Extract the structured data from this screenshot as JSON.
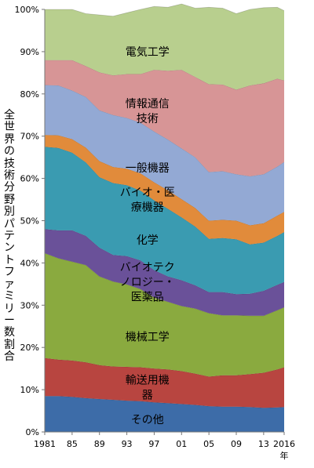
{
  "chart_data": {
    "type": "area",
    "stacked": true,
    "normalized": true,
    "ylabel": "全世界の技術分野別パテントファミリー数割合",
    "xlabel_suffix": "年",
    "x": [
      1981,
      1983,
      1985,
      1987,
      1989,
      1991,
      1993,
      1995,
      1997,
      1999,
      2001,
      2003,
      2005,
      2007,
      2009,
      2011,
      2013,
      2015,
      2016
    ],
    "xticks": [
      1981,
      1985,
      1989,
      1993,
      1997,
      2001,
      2005,
      2009,
      2013,
      2016
    ],
    "xtick_labels": [
      "1981",
      "85",
      "89",
      "93",
      "97",
      "01",
      "05",
      "09",
      "13",
      "2016"
    ],
    "yticks": [
      0,
      10,
      20,
      30,
      40,
      50,
      60,
      70,
      80,
      90,
      100
    ],
    "ytick_labels": [
      "0%",
      "10%",
      "20%",
      "30%",
      "40%",
      "50%",
      "60%",
      "70%",
      "80%",
      "90%",
      "100%"
    ],
    "ylim": [
      0,
      100
    ],
    "series": [
      {
        "color": "#3d6ca8",
        "label_lines": [
          "その他"
        ],
        "label_x": 1996,
        "label_y": 3,
        "values": [
          8.5,
          8.5,
          8.3,
          8.0,
          7.8,
          7.6,
          7.4,
          7.3,
          7.0,
          6.8,
          6.6,
          6.4,
          6.1,
          6.0,
          6.0,
          5.9,
          5.7,
          5.8,
          5.9
        ]
      },
      {
        "color": "#b84540",
        "label_lines": [
          "輸送用機",
          "器"
        ],
        "label_x": 1996,
        "label_y": 10.6,
        "values": [
          9.0,
          8.6,
          8.6,
          8.5,
          8.0,
          7.9,
          8.0,
          8.0,
          8.0,
          8.0,
          7.8,
          7.4,
          7.0,
          7.4,
          7.4,
          7.8,
          8.3,
          9.0,
          9.4
        ]
      },
      {
        "color": "#8aaa3f",
        "label_lines": [
          "機械工学"
        ],
        "label_x": 1996,
        "label_y": 22.5,
        "values": [
          24.8,
          24.0,
          23.4,
          23.0,
          21.0,
          20.1,
          19.5,
          18.5,
          16.8,
          16.0,
          15.4,
          15.4,
          15.0,
          14.2,
          14.2,
          13.8,
          13.5,
          14.0,
          14.2
        ]
      },
      {
        "color": "#6a5199",
        "label_lines": [
          "バイオテク",
          "ノロジー・",
          "医薬品"
        ],
        "label_x": 1996,
        "label_y": 35.5,
        "values": [
          5.7,
          6.6,
          7.4,
          6.9,
          6.8,
          6.3,
          6.7,
          6.8,
          6.5,
          6.0,
          6.1,
          5.5,
          5.0,
          5.5,
          5.0,
          5.2,
          5.9,
          6.0,
          6.0
        ]
      },
      {
        "color": "#3a9bb1",
        "label_lines": [
          "化学"
        ],
        "label_x": 1996,
        "label_y": 45.5,
        "values": [
          19.5,
          19.5,
          18.4,
          17.4,
          16.7,
          17.0,
          16.8,
          16.5,
          16.5,
          16.0,
          14.9,
          13.9,
          12.6,
          12.8,
          13.0,
          11.7,
          11.4,
          11.6,
          11.8
        ]
      },
      {
        "color": "#e18b3b",
        "label_lines": [
          "バイオ・医",
          "療機器"
        ],
        "label_x": 1996,
        "label_y": 55,
        "values": [
          2.8,
          3.0,
          3.2,
          3.5,
          3.8,
          3.8,
          3.9,
          4.1,
          4.3,
          4.4,
          4.3,
          4.4,
          4.3,
          4.3,
          4.4,
          4.5,
          4.6,
          4.8,
          4.8
        ]
      },
      {
        "color": "#93a9d4",
        "label_lines": [
          "一般機器"
        ],
        "label_x": 1996,
        "label_y": 62.5,
        "values": [
          11.8,
          11.8,
          11.5,
          12.0,
          12.0,
          12.3,
          12.0,
          12.0,
          12.0,
          12.0,
          12.0,
          12.0,
          11.5,
          11.5,
          11.0,
          11.6,
          11.6,
          11.6,
          11.8
        ]
      },
      {
        "color": "#d79596",
        "label_lines": [
          "情報通信",
          "技術"
        ],
        "label_x": 1996,
        "label_y": 76,
        "values": [
          5.9,
          6.0,
          7.2,
          7.3,
          9.0,
          9.4,
          10.4,
          11.5,
          14.6,
          16.3,
          18.6,
          19.0,
          20.8,
          20.5,
          20.0,
          21.5,
          21.5,
          20.8,
          19.3
        ]
      },
      {
        "color": "#b8cf8e",
        "label_lines": [
          "電気工学"
        ],
        "label_x": 1996,
        "label_y": 90,
        "values": [
          12.0,
          12.0,
          12.0,
          12.4,
          13.6,
          14.0,
          14.5,
          15.3,
          15.0,
          15.0,
          15.6,
          16.3,
          18.2,
          18.1,
          18.0,
          18.0,
          17.9,
          16.9,
          16.5
        ]
      }
    ]
  }
}
